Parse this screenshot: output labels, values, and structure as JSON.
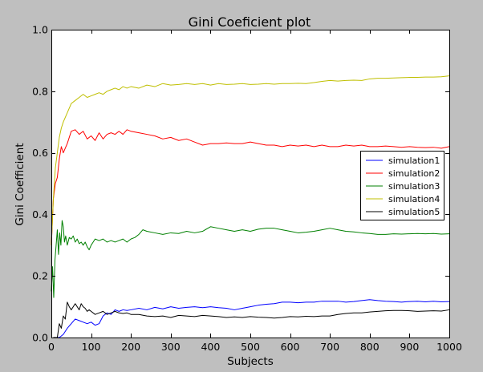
{
  "chart_data": {
    "type": "line",
    "title": "Gini Coeficient plot",
    "xlabel": "Subjects",
    "ylabel": "Gini Coefficient",
    "xlim": [
      0,
      1000
    ],
    "ylim": [
      0.0,
      1.0
    ],
    "xticks": [
      0,
      100,
      200,
      300,
      400,
      500,
      600,
      700,
      800,
      900,
      1000
    ],
    "xtick_labels": [
      "0",
      "100",
      "200",
      "300",
      "400",
      "500",
      "600",
      "700",
      "800",
      "900",
      "1000"
    ],
    "yticks": [
      0.0,
      0.2,
      0.4,
      0.6,
      0.8,
      1.0
    ],
    "ytick_labels": [
      "0.0",
      "0.2",
      "0.4",
      "0.6",
      "0.8",
      "1.0"
    ],
    "grid": false,
    "legend_position": "center-right",
    "series": [
      {
        "name": "simulation1",
        "color": "#0000ff",
        "x": [
          5,
          20,
          30,
          40,
          50,
          60,
          70,
          80,
          90,
          100,
          110,
          120,
          130,
          140,
          150,
          160,
          170,
          180,
          190,
          200,
          220,
          240,
          260,
          280,
          300,
          320,
          340,
          360,
          380,
          400,
          420,
          440,
          460,
          480,
          500,
          520,
          540,
          560,
          580,
          600,
          620,
          640,
          660,
          680,
          700,
          720,
          740,
          760,
          780,
          800,
          820,
          840,
          860,
          880,
          900,
          920,
          940,
          960,
          980,
          1000
        ],
        "y": [
          0.0,
          0.0,
          0.01,
          0.03,
          0.045,
          0.06,
          0.055,
          0.05,
          0.045,
          0.05,
          0.04,
          0.045,
          0.07,
          0.08,
          0.075,
          0.09,
          0.085,
          0.09,
          0.088,
          0.09,
          0.095,
          0.09,
          0.098,
          0.093,
          0.1,
          0.095,
          0.098,
          0.1,
          0.097,
          0.1,
          0.097,
          0.095,
          0.09,
          0.095,
          0.1,
          0.105,
          0.108,
          0.11,
          0.115,
          0.115,
          0.113,
          0.115,
          0.115,
          0.118,
          0.118,
          0.118,
          0.115,
          0.117,
          0.12,
          0.123,
          0.12,
          0.118,
          0.117,
          0.115,
          0.117,
          0.118,
          0.116,
          0.118,
          0.116,
          0.117
        ]
      },
      {
        "name": "simulation2",
        "color": "#ff0000",
        "x": [
          0,
          5,
          10,
          15,
          20,
          25,
          30,
          40,
          50,
          60,
          70,
          80,
          90,
          100,
          110,
          120,
          130,
          140,
          150,
          160,
          170,
          180,
          190,
          200,
          220,
          240,
          260,
          280,
          300,
          320,
          340,
          360,
          380,
          400,
          420,
          440,
          460,
          480,
          500,
          520,
          540,
          560,
          580,
          600,
          620,
          640,
          660,
          680,
          700,
          720,
          740,
          760,
          780,
          800,
          820,
          840,
          860,
          880,
          900,
          920,
          940,
          960,
          980,
          1000
        ],
        "y": [
          0.3,
          0.45,
          0.5,
          0.52,
          0.58,
          0.62,
          0.6,
          0.63,
          0.67,
          0.675,
          0.66,
          0.67,
          0.645,
          0.655,
          0.64,
          0.665,
          0.645,
          0.66,
          0.665,
          0.66,
          0.67,
          0.66,
          0.675,
          0.67,
          0.665,
          0.66,
          0.655,
          0.645,
          0.65,
          0.64,
          0.645,
          0.635,
          0.625,
          0.63,
          0.63,
          0.632,
          0.63,
          0.63,
          0.635,
          0.63,
          0.625,
          0.625,
          0.62,
          0.625,
          0.622,
          0.625,
          0.62,
          0.625,
          0.62,
          0.62,
          0.625,
          0.622,
          0.625,
          0.62,
          0.62,
          0.622,
          0.62,
          0.618,
          0.62,
          0.618,
          0.617,
          0.618,
          0.615,
          0.62
        ]
      },
      {
        "name": "simulation3",
        "color": "#008000",
        "x": [
          0,
          3,
          6,
          9,
          12,
          15,
          18,
          21,
          24,
          27,
          30,
          33,
          36,
          40,
          45,
          50,
          55,
          60,
          65,
          70,
          75,
          80,
          85,
          90,
          95,
          100,
          105,
          110,
          120,
          130,
          140,
          150,
          160,
          170,
          180,
          190,
          200,
          210,
          220,
          230,
          240,
          260,
          280,
          300,
          320,
          340,
          360,
          380,
          400,
          420,
          440,
          460,
          480,
          500,
          520,
          540,
          560,
          580,
          600,
          620,
          640,
          660,
          680,
          700,
          720,
          740,
          760,
          780,
          800,
          820,
          840,
          860,
          880,
          900,
          920,
          940,
          960,
          980,
          1000
        ],
        "y": [
          0.15,
          0.23,
          0.13,
          0.25,
          0.3,
          0.35,
          0.27,
          0.34,
          0.3,
          0.38,
          0.36,
          0.31,
          0.33,
          0.3,
          0.325,
          0.32,
          0.33,
          0.31,
          0.32,
          0.305,
          0.31,
          0.3,
          0.31,
          0.295,
          0.285,
          0.3,
          0.31,
          0.32,
          0.315,
          0.32,
          0.31,
          0.315,
          0.31,
          0.315,
          0.32,
          0.31,
          0.32,
          0.325,
          0.335,
          0.35,
          0.345,
          0.34,
          0.335,
          0.34,
          0.338,
          0.345,
          0.34,
          0.345,
          0.36,
          0.355,
          0.35,
          0.345,
          0.35,
          0.345,
          0.352,
          0.355,
          0.355,
          0.35,
          0.345,
          0.34,
          0.342,
          0.345,
          0.35,
          0.355,
          0.35,
          0.345,
          0.343,
          0.34,
          0.338,
          0.335,
          0.335,
          0.337,
          0.336,
          0.337,
          0.338,
          0.337,
          0.338,
          0.336,
          0.337
        ]
      },
      {
        "name": "simulation4",
        "color": "#bfbf00",
        "x": [
          0,
          5,
          10,
          15,
          20,
          25,
          30,
          40,
          50,
          60,
          70,
          80,
          90,
          100,
          110,
          120,
          130,
          140,
          150,
          160,
          170,
          180,
          190,
          200,
          220,
          240,
          260,
          280,
          300,
          320,
          340,
          360,
          380,
          400,
          420,
          440,
          460,
          480,
          500,
          520,
          540,
          560,
          580,
          600,
          620,
          640,
          660,
          680,
          700,
          720,
          740,
          760,
          780,
          800,
          820,
          840,
          860,
          880,
          900,
          920,
          940,
          960,
          980,
          1000
        ],
        "y": [
          0.3,
          0.45,
          0.55,
          0.6,
          0.65,
          0.68,
          0.7,
          0.73,
          0.76,
          0.77,
          0.78,
          0.79,
          0.78,
          0.785,
          0.79,
          0.795,
          0.79,
          0.8,
          0.805,
          0.81,
          0.805,
          0.815,
          0.81,
          0.815,
          0.81,
          0.82,
          0.815,
          0.825,
          0.82,
          0.822,
          0.825,
          0.822,
          0.825,
          0.82,
          0.825,
          0.822,
          0.823,
          0.825,
          0.822,
          0.823,
          0.825,
          0.823,
          0.825,
          0.825,
          0.826,
          0.825,
          0.828,
          0.832,
          0.835,
          0.833,
          0.835,
          0.836,
          0.835,
          0.84,
          0.842,
          0.842,
          0.843,
          0.844,
          0.845,
          0.845,
          0.846,
          0.846,
          0.847,
          0.85
        ]
      },
      {
        "name": "simulation5",
        "color": "#000000",
        "x": [
          5,
          15,
          20,
          25,
          30,
          35,
          40,
          45,
          50,
          55,
          60,
          65,
          70,
          75,
          80,
          85,
          90,
          95,
          100,
          110,
          120,
          130,
          140,
          150,
          160,
          170,
          180,
          190,
          200,
          220,
          240,
          260,
          280,
          300,
          320,
          340,
          360,
          380,
          400,
          420,
          440,
          460,
          480,
          500,
          520,
          540,
          560,
          580,
          600,
          620,
          640,
          660,
          680,
          700,
          720,
          740,
          760,
          780,
          800,
          820,
          840,
          860,
          880,
          900,
          920,
          940,
          960,
          980,
          1000
        ],
        "y": [
          0.0,
          0.0,
          0.045,
          0.03,
          0.07,
          0.06,
          0.115,
          0.1,
          0.09,
          0.1,
          0.11,
          0.1,
          0.09,
          0.11,
          0.1,
          0.095,
          0.085,
          0.09,
          0.085,
          0.075,
          0.08,
          0.085,
          0.075,
          0.08,
          0.085,
          0.08,
          0.078,
          0.08,
          0.075,
          0.075,
          0.07,
          0.068,
          0.07,
          0.065,
          0.072,
          0.07,
          0.068,
          0.072,
          0.07,
          0.068,
          0.065,
          0.067,
          0.065,
          0.068,
          0.066,
          0.065,
          0.063,
          0.065,
          0.068,
          0.067,
          0.069,
          0.068,
          0.07,
          0.07,
          0.075,
          0.078,
          0.08,
          0.08,
          0.083,
          0.085,
          0.087,
          0.088,
          0.088,
          0.087,
          0.085,
          0.086,
          0.087,
          0.086,
          0.09
        ]
      }
    ]
  }
}
